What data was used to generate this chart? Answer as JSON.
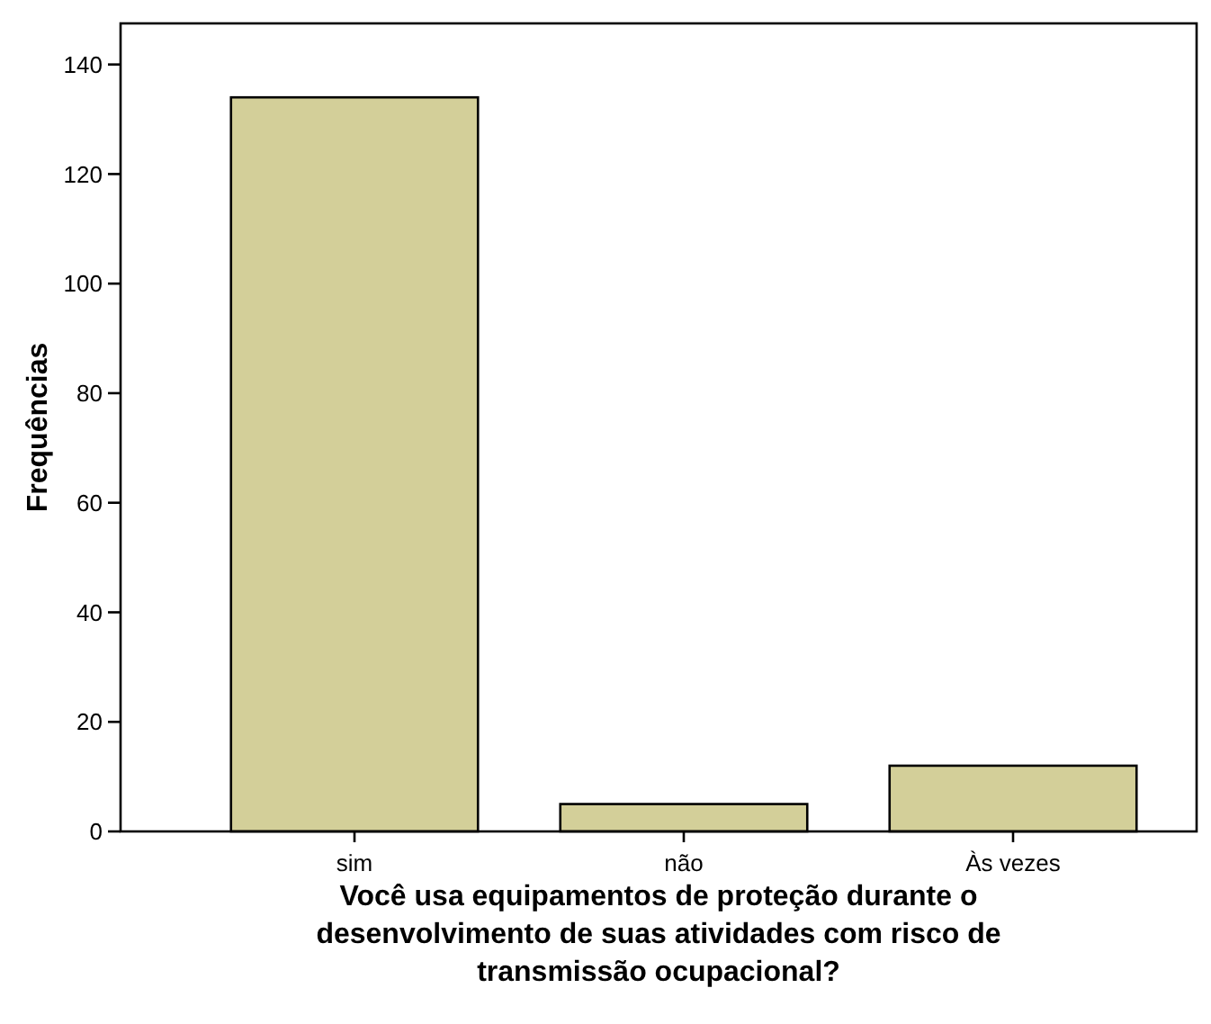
{
  "chart_data": {
    "type": "bar",
    "xlabel": "Você usa equipamentos de proteção durante o desenvolvimento de suas atividades com risco de transmissão ocupacional?",
    "ylabel": "Frequências",
    "categories": [
      "sim",
      "não",
      "Às vezes"
    ],
    "values": [
      134,
      5,
      12
    ],
    "color": "#d3cf99",
    "ylim": [
      0,
      147.5
    ],
    "yticks": [
      0,
      20,
      40,
      60,
      80,
      100,
      120,
      140
    ],
    "grid": false
  }
}
